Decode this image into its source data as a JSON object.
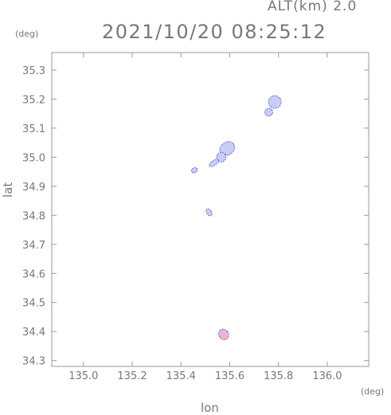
{
  "header": {
    "altitude_label": "ALT(km)",
    "altitude_value": "2.0",
    "datetime": "2021/10/20 08:25:12"
  },
  "axes": {
    "x_label": "lon",
    "y_label": "lat",
    "x_unit": "(deg)",
    "y_unit": "(deg)",
    "x_range": [
      134.87,
      136.17
    ],
    "y_range": [
      34.28,
      35.36
    ],
    "x_ticks": [
      "135.0",
      "135.2",
      "135.4",
      "135.6",
      "135.8",
      "136.0"
    ],
    "y_ticks": [
      "34.3",
      "34.4",
      "34.5",
      "34.6",
      "34.7",
      "34.8",
      "34.9",
      "35.0",
      "35.1",
      "35.2",
      "35.3"
    ]
  },
  "colors": {
    "axis": "#9a9a9a",
    "text": "#777777",
    "echo_weak": "#c8cdf5",
    "echo_edge": "#2b33b8",
    "echo_pink": "#efb3d2"
  },
  "chart_data": {
    "type": "scatter",
    "x_values_unit": "deg lon",
    "y_values_unit": "deg lat",
    "echo_areas": [
      {
        "lon": 135.785,
        "lat": 35.19,
        "intensity": "weak"
      },
      {
        "lon": 135.76,
        "lat": 35.155,
        "intensity": "weak"
      },
      {
        "lon": 135.59,
        "lat": 35.03,
        "intensity": "weak"
      },
      {
        "lon": 135.565,
        "lat": 35.0,
        "intensity": "weak"
      },
      {
        "lon": 135.535,
        "lat": 34.98,
        "intensity": "weak"
      },
      {
        "lon": 135.455,
        "lat": 34.955,
        "intensity": "weak"
      },
      {
        "lon": 135.515,
        "lat": 34.81,
        "intensity": "weak"
      },
      {
        "lon": 135.575,
        "lat": 34.39,
        "intensity": "moderate"
      }
    ]
  }
}
